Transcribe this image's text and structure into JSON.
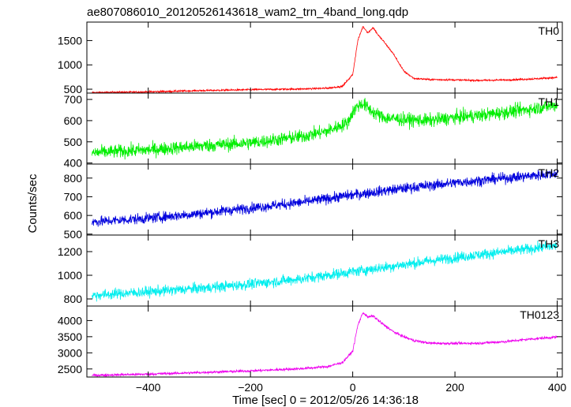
{
  "chart_data": {
    "type": "line",
    "title": "ae807086010_20120526143618_wam2_trn_4band_long.qdp",
    "xlabel": "Time [sec] 0 = 2012/05/26 14:36:18",
    "ylabel": "Counts/sec",
    "xlim": [
      -520,
      410
    ],
    "xticks": [
      -400,
      -200,
      0,
      200,
      400
    ],
    "legend": "none",
    "grid": false,
    "panels": [
      {
        "name": "TH0",
        "color": "#ff0000",
        "ylim": [
          420,
          1880
        ],
        "yticks": [
          500,
          1000,
          1500
        ],
        "noise": 18,
        "x": [
          -510,
          -400,
          -300,
          -200,
          -100,
          -50,
          -20,
          0,
          10,
          20,
          30,
          40,
          50,
          60,
          80,
          100,
          120,
          150,
          200,
          250,
          300,
          350,
          400
        ],
        "y": [
          430,
          445,
          470,
          490,
          505,
          520,
          560,
          800,
          1500,
          1790,
          1660,
          1770,
          1610,
          1490,
          1220,
          870,
          720,
          700,
          690,
          680,
          690,
          710,
          740
        ]
      },
      {
        "name": "TH1",
        "color": "#00ee00",
        "ylim": [
          395,
          730
        ],
        "yticks": [
          400,
          500,
          600,
          700
        ],
        "noise": 32,
        "x": [
          -510,
          -400,
          -300,
          -200,
          -100,
          -50,
          -10,
          0,
          10,
          20,
          40,
          60,
          100,
          150,
          200,
          250,
          300,
          350,
          400
        ],
        "y": [
          448,
          462,
          480,
          495,
          525,
          550,
          590,
          640,
          670,
          680,
          640,
          615,
          605,
          600,
          615,
          625,
          640,
          655,
          675
        ]
      },
      {
        "name": "TH2",
        "color": "#0000dd",
        "ylim": [
          495,
          875
        ],
        "yticks": [
          500,
          600,
          700,
          800
        ],
        "noise": 28,
        "x": [
          -510,
          -400,
          -300,
          -200,
          -100,
          0,
          100,
          200,
          300,
          400
        ],
        "y": [
          565,
          585,
          610,
          640,
          670,
          710,
          745,
          775,
          800,
          825
        ]
      },
      {
        "name": "TH3",
        "color": "#00eeee",
        "ylim": [
          740,
          1340
        ],
        "yticks": [
          800,
          1000,
          1200
        ],
        "noise": 45,
        "x": [
          -510,
          -400,
          -300,
          -200,
          -100,
          0,
          100,
          200,
          300,
          400
        ],
        "y": [
          830,
          860,
          890,
          925,
          970,
          1030,
          1090,
          1150,
          1200,
          1250
        ]
      },
      {
        "name": "TH0123",
        "color": "#ee00ee",
        "ylim": [
          2250,
          4450
        ],
        "yticks": [
          2500,
          3000,
          3500,
          4000
        ],
        "noise": 40,
        "x": [
          -510,
          -400,
          -300,
          -200,
          -100,
          -50,
          -20,
          0,
          10,
          20,
          30,
          40,
          50,
          60,
          80,
          100,
          120,
          150,
          200,
          250,
          300,
          350,
          400
        ],
        "y": [
          2300,
          2340,
          2390,
          2440,
          2510,
          2570,
          2700,
          3050,
          3850,
          4250,
          4100,
          4150,
          4000,
          3880,
          3650,
          3500,
          3380,
          3300,
          3290,
          3300,
          3350,
          3430,
          3490
        ]
      }
    ]
  }
}
